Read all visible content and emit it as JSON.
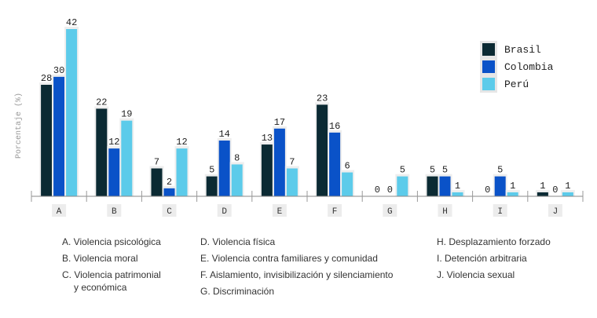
{
  "chart_data": {
    "type": "bar",
    "title": "",
    "xlabel": "",
    "ylabel": "Porcentaje (%)",
    "ylim": [
      0,
      42
    ],
    "grid": false,
    "legend_position": "top-right",
    "categories": [
      "A",
      "B",
      "C",
      "D",
      "E",
      "F",
      "G",
      "H",
      "I",
      "J"
    ],
    "series": [
      {
        "name": "Brasil",
        "color": "#0b2a33",
        "values": [
          28,
          22,
          7,
          5,
          13,
          23,
          0,
          5,
          0,
          1
        ]
      },
      {
        "name": "Colombia",
        "color": "#0a52c8",
        "values": [
          30,
          12,
          2,
          14,
          17,
          16,
          0,
          5,
          5,
          0
        ]
      },
      {
        "name": "Perú",
        "color": "#5ccbea",
        "values": [
          42,
          19,
          12,
          8,
          7,
          6,
          5,
          1,
          1,
          1
        ]
      }
    ]
  },
  "legend": {
    "items": [
      {
        "label": "Brasil",
        "color": "#0b2a33"
      },
      {
        "label": "Colombia",
        "color": "#0a52c8"
      },
      {
        "label": "Perú",
        "color": "#5ccbea"
      }
    ]
  },
  "category_notes": {
    "col1": [
      {
        "text": "A. Violencia psicológica"
      },
      {
        "text": "B. Violencia moral"
      },
      {
        "text": "C. Violencia patrimonial"
      },
      {
        "text": "y económica",
        "continuation": true
      }
    ],
    "col2": [
      {
        "text": "D. Violencia física"
      },
      {
        "text": "E. Violencia contra familiares y comunidad"
      },
      {
        "text": "F. Aislamiento, invisibilización y silenciamiento"
      },
      {
        "text": "G. Discriminación"
      }
    ],
    "col3": [
      {
        "text": "H. Desplazamiento forzado"
      },
      {
        "text": "I. Detención arbitraria"
      },
      {
        "text": "J. Violencia sexual"
      }
    ]
  }
}
